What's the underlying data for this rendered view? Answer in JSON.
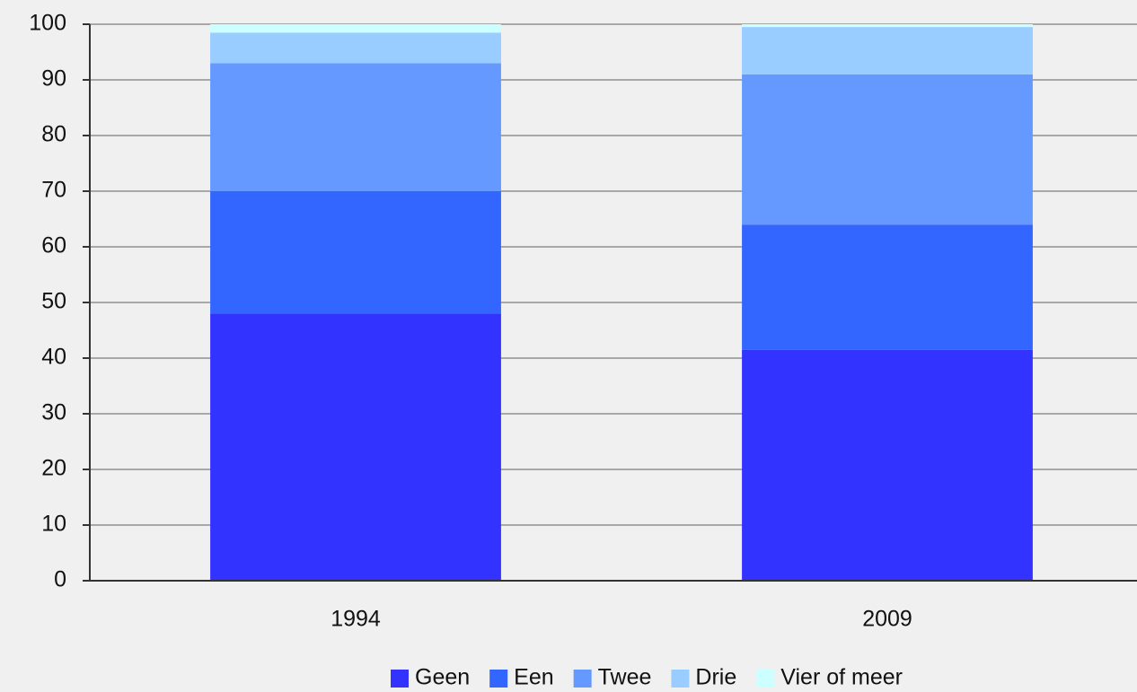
{
  "chart_data": {
    "type": "stacked_bar",
    "categories": [
      "1994",
      "2009"
    ],
    "series": [
      {
        "name": "Geen",
        "color": "#3333ff",
        "values": [
          48,
          41.5
        ]
      },
      {
        "name": "Een",
        "color": "#3366ff",
        "values": [
          22,
          22.5
        ]
      },
      {
        "name": "Twee",
        "color": "#6699ff",
        "values": [
          23,
          27
        ]
      },
      {
        "name": "Drie",
        "color": "#99ccff",
        "values": [
          5.5,
          8.5
        ]
      },
      {
        "name": "Vier of meer",
        "color": "#ccffff",
        "values": [
          1.5,
          0.5
        ]
      }
    ],
    "ylim": [
      0,
      100
    ],
    "yticks": [
      0,
      10,
      20,
      30,
      40,
      50,
      60,
      70,
      80,
      90,
      100
    ],
    "grid": true,
    "legend": "bottom"
  }
}
